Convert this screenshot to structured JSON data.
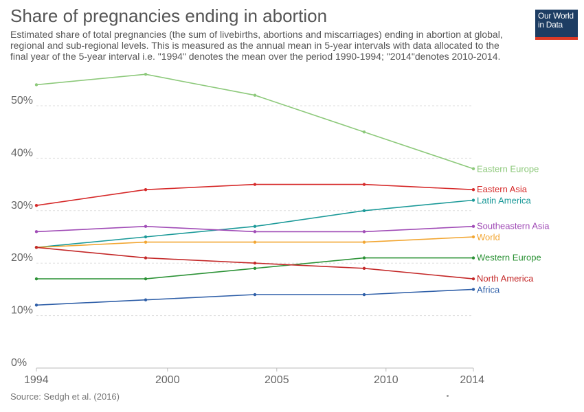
{
  "header": {
    "title": "Share of pregnancies ending in abortion",
    "subtitle": "Estimated share of total pregnancies (the sum of livebirths, abortions and miscarriages) ending in abortion at global, regional and sub-regional levels. This is measured as the annual mean in 5-year intervals with data allocated to the final year of the 5-year interval i.e. \"1994\" denotes the mean over the period 1990-1994; \"2014\"denotes 2010-2014."
  },
  "logo": {
    "line1": "Our World",
    "line2": "in Data",
    "bg_color": "#1d3d63",
    "accent_color": "#dc3a26"
  },
  "footer": {
    "source": "Source: Sedgh et al. (2016)"
  },
  "chart_data": {
    "type": "line",
    "title": "Share of pregnancies ending in abortion",
    "x": [
      1994,
      1999,
      2004,
      2009,
      2014
    ],
    "xticks": [
      "1994",
      "2000",
      "2005",
      "2010",
      "2014"
    ],
    "xtick_values": [
      1994,
      2000,
      2005,
      2010,
      2014
    ],
    "xlim": [
      1994,
      2014
    ],
    "ylim": [
      0,
      55
    ],
    "yticks": [
      0,
      10,
      20,
      30,
      40,
      50
    ],
    "ytick_labels": [
      "0%",
      "10%",
      "20%",
      "30%",
      "40%",
      "50%"
    ],
    "grid": "horizontal dashed",
    "legend": "inline labels at right end of lines",
    "series": [
      {
        "name": "Eastern Europe",
        "color": "#8dc97b",
        "values": [
          54,
          56,
          52,
          45,
          38
        ]
      },
      {
        "name": "Eastern Asia",
        "color": "#d62a2a",
        "values": [
          31,
          34,
          35,
          35,
          34
        ]
      },
      {
        "name": "Latin America",
        "color": "#1c9a99",
        "values": [
          23,
          25,
          27,
          30,
          32
        ]
      },
      {
        "name": "Southeastern Asia",
        "color": "#a04bb6",
        "values": [
          26,
          27,
          26,
          26,
          27
        ]
      },
      {
        "name": "World",
        "color": "#f2a632",
        "values": [
          23,
          24,
          24,
          24,
          25
        ]
      },
      {
        "name": "Western Europe",
        "color": "#2c9236",
        "values": [
          17,
          17,
          19,
          21,
          21
        ]
      },
      {
        "name": "North America",
        "color": "#c42828",
        "values": [
          23,
          21,
          20,
          19,
          17
        ]
      },
      {
        "name": "Africa",
        "color": "#2f5fa8",
        "values": [
          12,
          13,
          14,
          14,
          15
        ]
      }
    ]
  }
}
